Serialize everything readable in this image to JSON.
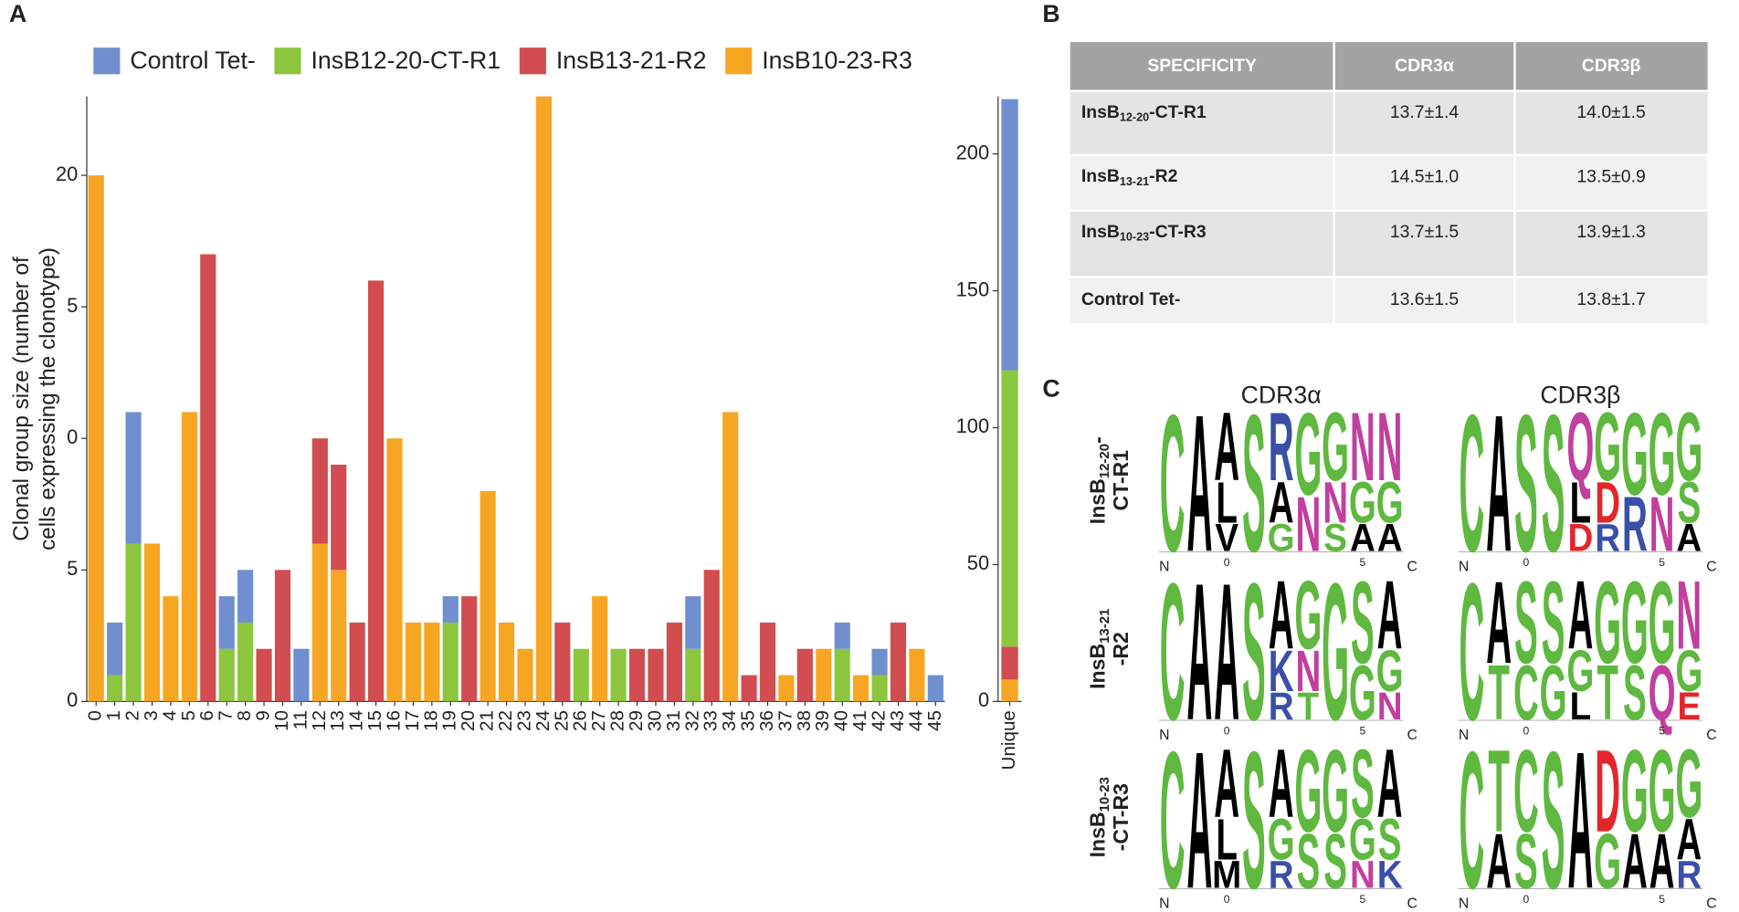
{
  "panel_labels": [
    "A",
    "B",
    "C"
  ],
  "chart_data": [
    {
      "type": "bar",
      "stacked": true,
      "ylabel": [
        "Clonal group size (number of",
        "cells expressing the clonotype)"
      ],
      "categories": [
        "0",
        "1",
        "2",
        "3",
        "4",
        "5",
        "6",
        "7",
        "8",
        "9",
        "10",
        "11",
        "12",
        "13",
        "14",
        "15",
        "16",
        "17",
        "18",
        "19",
        "20",
        "21",
        "22",
        "23",
        "24",
        "25",
        "26",
        "27",
        "28",
        "29",
        "30",
        "31",
        "32",
        "33",
        "34",
        "35",
        "36",
        "37",
        "38",
        "39",
        "40",
        "41",
        "42",
        "43",
        "44",
        "45"
      ],
      "series": [
        {
          "name": "Control Tet-",
          "color": "#6f8fcf",
          "values": [
            0,
            2,
            5,
            0,
            0,
            0,
            0,
            2,
            2,
            0,
            0,
            2,
            0,
            0,
            0,
            0,
            0,
            0,
            0,
            1,
            0,
            0,
            0,
            0,
            0,
            0,
            0,
            0,
            0,
            0,
            0,
            0,
            2,
            0,
            0,
            0,
            0,
            0,
            0,
            0,
            1,
            0,
            1,
            0,
            0,
            1
          ]
        },
        {
          "name": "InsB12-20-CT-R1",
          "color": "#8cc63f",
          "values": [
            0,
            1,
            6,
            0,
            0,
            0,
            0,
            2,
            3,
            0,
            0,
            0,
            0,
            0,
            0,
            0,
            0,
            0,
            0,
            3,
            0,
            0,
            0,
            0,
            0,
            0,
            2,
            0,
            2,
            0,
            0,
            0,
            2,
            0,
            0,
            0,
            0,
            0,
            0,
            0,
            2,
            0,
            1,
            0,
            0,
            0
          ]
        },
        {
          "name": "InsB13-21-R2",
          "color": "#d14d50",
          "values": [
            0,
            0,
            0,
            0,
            0,
            0,
            17,
            0,
            0,
            2,
            5,
            0,
            4,
            4,
            3,
            16,
            0,
            0,
            0,
            0,
            4,
            0,
            0,
            0,
            0,
            3,
            0,
            0,
            0,
            2,
            2,
            3,
            0,
            5,
            0,
            1,
            3,
            0,
            2,
            0,
            0,
            0,
            0,
            3,
            0,
            0
          ]
        },
        {
          "name": "InsB10-23-R3",
          "color": "#f7a623",
          "values": [
            20,
            0,
            0,
            6,
            4,
            11,
            0,
            0,
            0,
            0,
            0,
            0,
            6,
            5,
            0,
            0,
            10,
            3,
            3,
            0,
            0,
            8,
            3,
            2,
            23,
            0,
            0,
            4,
            0,
            0,
            0,
            0,
            0,
            0,
            11,
            0,
            0,
            1,
            0,
            2,
            0,
            1,
            0,
            0,
            2,
            0
          ]
        }
      ],
      "ylim": [
        0,
        23
      ],
      "yticks": [
        0,
        5,
        {
          "value": 10,
          "label": "0"
        },
        {
          "value": 15,
          "label": "5"
        },
        20
      ],
      "legend": "top"
    },
    {
      "type": "bar",
      "stacked": true,
      "categories": [
        "Unique"
      ],
      "series": [
        {
          "color": "#6f8fcf",
          "values": [
            99
          ]
        },
        {
          "color": "#8cc63f",
          "values": [
            101
          ]
        },
        {
          "color": "#d14d50",
          "values": [
            12
          ]
        },
        {
          "color": "#f7a623",
          "values": [
            8
          ]
        }
      ],
      "ylim": [
        0,
        221
      ],
      "yticks": [
        0,
        50,
        100,
        150,
        200
      ]
    }
  ],
  "table": {
    "header": [
      "SPECIFICITY",
      "CDR3α",
      "CDR3β"
    ],
    "rows": [
      [
        {
          "base": "InsB",
          "sub": "12-20",
          "rest": "-CT-R1"
        },
        "13.7±1.4",
        "14.0±1.5"
      ],
      [
        {
          "base": "InsB",
          "sub": "13-21",
          "rest": "-R2"
        },
        "14.5±1.0",
        "13.5±0.9"
      ],
      [
        {
          "base": "InsB",
          "sub": "10-23",
          "rest": "-CT-R3"
        },
        "13.7±1.5",
        "13.9±1.3"
      ],
      [
        "Control Tet-",
        "13.6±1.5",
        "13.8±1.7"
      ]
    ]
  },
  "logos": {
    "columns": [
      "CDR3α",
      "CDR3β"
    ],
    "axis_labels": [
      "N",
      "0",
      "5",
      "C"
    ],
    "letter_colors": {
      "C": "#5fb83f",
      "S": "#5fb83f",
      "G": "#5fb83f",
      "T": "#5fb83f",
      "Y": "#5fb83f",
      "A": "#000000",
      "L": "#000000",
      "V": "#000000",
      "M": "#000000",
      "I": "#000000",
      "F": "#000000",
      "P": "#000000",
      "W": "#000000",
      "N": "#c13f9e",
      "Q": "#c13f9e",
      "R": "#3a4fa8",
      "K": "#3a4fa8",
      "H": "#3a4fa8",
      "D": "#e3262b",
      "E": "#e3262b"
    },
    "rows": [
      {
        "label": {
          "base": "InsB",
          "sub": "12-20",
          "suffix": "-",
          "line2": "CT-R1"
        },
        "alpha": [
          [
            "C"
          ],
          [
            "A"
          ],
          [
            "A",
            "L",
            "V"
          ],
          [
            "S"
          ],
          [
            "R",
            "A",
            "G"
          ],
          [
            "G",
            "N"
          ],
          [
            "G",
            "N",
            "S"
          ],
          [
            "N",
            "G",
            "A"
          ],
          [
            "N",
            "G",
            "A"
          ]
        ],
        "beta": [
          [
            "C"
          ],
          [
            "A"
          ],
          [
            "S"
          ],
          [
            "S"
          ],
          [
            "Q",
            "L",
            "D"
          ],
          [
            "G",
            "D",
            "R"
          ],
          [
            "G",
            "R"
          ],
          [
            "G",
            "N"
          ],
          [
            "G",
            "S",
            "A"
          ]
        ]
      },
      {
        "label": {
          "base": "InsB",
          "sub": "13-21",
          "line2": "-R2"
        },
        "alpha": [
          [
            "C"
          ],
          [
            "A"
          ],
          [
            "A"
          ],
          [
            "S"
          ],
          [
            "A",
            "K",
            "R"
          ],
          [
            "G",
            "N",
            "T"
          ],
          [
            "G"
          ],
          [
            "S",
            "G"
          ],
          [
            "A",
            "G",
            "N"
          ]
        ],
        "beta": [
          [
            "C"
          ],
          [
            "A",
            "T"
          ],
          [
            "S",
            "C"
          ],
          [
            "S",
            "G"
          ],
          [
            "A",
            "G",
            "L"
          ],
          [
            "G",
            "T"
          ],
          [
            "G",
            "S"
          ],
          [
            "G",
            "Q"
          ],
          [
            "N",
            "G",
            "E"
          ]
        ]
      },
      {
        "label": {
          "base": "InsB",
          "sub": "10-23",
          "line2": "-CT-R3"
        },
        "alpha": [
          [
            "C"
          ],
          [
            "A"
          ],
          [
            "A",
            "L",
            "M"
          ],
          [
            "S"
          ],
          [
            "A",
            "G",
            "R"
          ],
          [
            "G",
            "S"
          ],
          [
            "G",
            "S"
          ],
          [
            "S",
            "G",
            "N"
          ],
          [
            "A",
            "S",
            "K"
          ]
        ],
        "beta": [
          [
            "C"
          ],
          [
            "T",
            "A"
          ],
          [
            "C",
            "S"
          ],
          [
            "S"
          ],
          [
            "A"
          ],
          [
            "D",
            "G"
          ],
          [
            "G",
            "A"
          ],
          [
            "G",
            "A"
          ],
          [
            "G",
            "A",
            "R"
          ]
        ]
      }
    ]
  }
}
